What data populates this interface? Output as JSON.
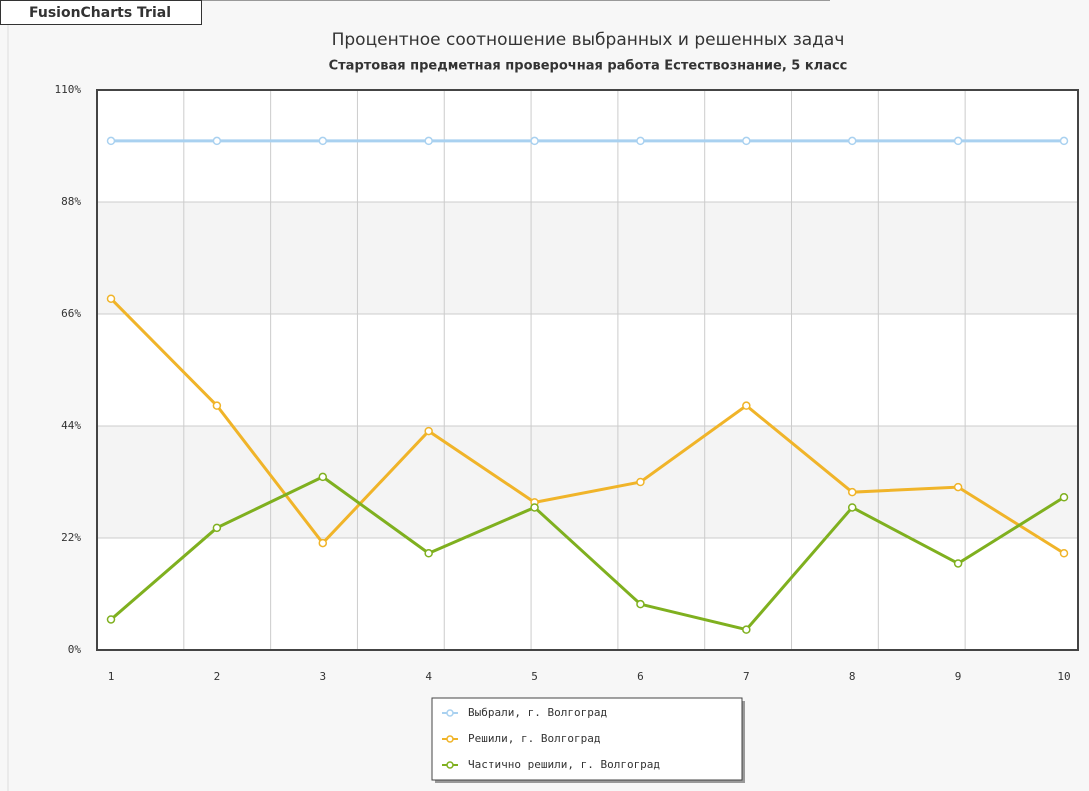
{
  "watermark": "FusionCharts Trial",
  "chart_data": {
    "type": "line",
    "title": "Процентное соотношение выбранных и решенных задач",
    "subtitle": "Стартовая предметная проверочная работа Естествознание, 5 класс",
    "categories": [
      "1",
      "2",
      "3",
      "4",
      "5",
      "6",
      "7",
      "8",
      "9",
      "10"
    ],
    "series": [
      {
        "name": "Выбрали, г. Волгоград",
        "color": "#a9d1f0",
        "values": [
          100,
          100,
          100,
          100,
          100,
          100,
          100,
          100,
          100,
          100
        ]
      },
      {
        "name": "Решили, г. Волгоград",
        "color": "#f0b429",
        "values": [
          69,
          48,
          21,
          43,
          29,
          33,
          48,
          31,
          32,
          19
        ]
      },
      {
        "name": "Частично решили, г. Волгоград",
        "color": "#7fb01f",
        "values": [
          6,
          24,
          34,
          19,
          28,
          9,
          4,
          28,
          17,
          30
        ]
      }
    ],
    "ylim": [
      0,
      110
    ],
    "yticks": [
      {
        "value": 0,
        "label": "0%"
      },
      {
        "value": 22,
        "label": "22%"
      },
      {
        "value": 44,
        "label": "44%"
      },
      {
        "value": 66,
        "label": "66%"
      },
      {
        "value": 88,
        "label": "88%"
      },
      {
        "value": 110,
        "label": "110%"
      }
    ],
    "grid": true,
    "legend": "bottom"
  }
}
